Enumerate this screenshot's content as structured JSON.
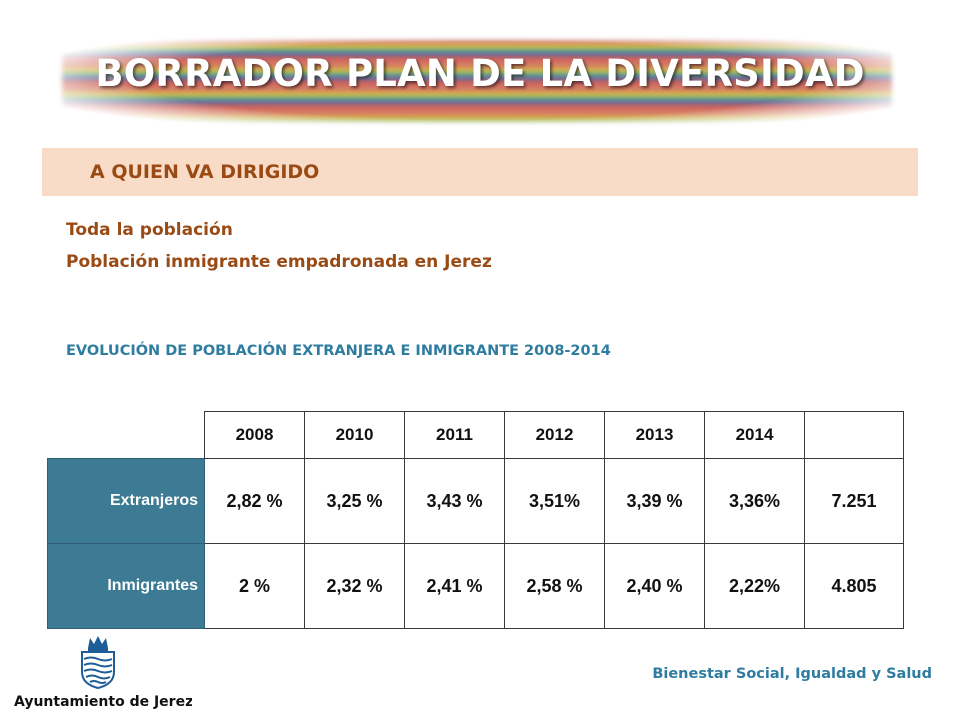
{
  "title": "BORRADOR PLAN DE LA DIVERSIDAD",
  "section": {
    "title": "A QUIEN VA DIRIGIDO"
  },
  "lines": [
    "Toda la población",
    "Población inmigrante empadronada en Jerez"
  ],
  "subheading": "EVOLUCIÓN DE POBLACIÓN EXTRANJERA E INMIGRANTE 2008-2014",
  "table": {
    "headers": [
      "",
      "2008",
      "2010",
      "2011",
      "2012",
      "2013",
      "2014",
      ""
    ],
    "rows": [
      {
        "label": "Extranjeros",
        "values": [
          "2,82 %",
          "3,25 %",
          "3,43 %",
          "3,51%",
          "3,39 %",
          "3,36%",
          "7.251"
        ]
      },
      {
        "label": "Inmigrantes",
        "values": [
          "2 %",
          "2,32 %",
          "2,41 %",
          "2,58 %",
          "2,40 %",
          "2,22%",
          "4.805"
        ]
      }
    ]
  },
  "footer": {
    "logo_text": "Ayuntamiento de Jerez",
    "department": "Bienestar Social, Igualdad y Salud"
  },
  "colors": {
    "accent": "#9a4a14",
    "blue": "#2e7da0",
    "rowhead": "#3d7a93",
    "section_bg": "#f9dcc7"
  }
}
